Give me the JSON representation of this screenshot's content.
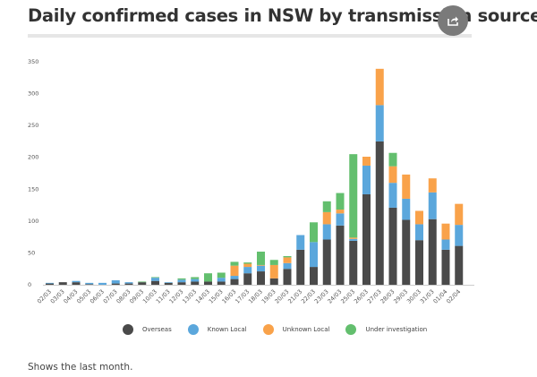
{
  "header": {
    "title": "Daily confirmed cases in NSW by transmission source",
    "share_icon": "share-icon"
  },
  "caption": "Shows the last month.",
  "chart_data": {
    "type": "bar",
    "stacked": true,
    "title": "Daily confirmed cases in NSW by transmission source",
    "xlabel": "",
    "ylabel": "",
    "ylim": [
      0,
      350
    ],
    "yticks": [
      0,
      50,
      100,
      150,
      200,
      250,
      300,
      350
    ],
    "grid": false,
    "legend_position": "bottom",
    "categories": [
      "02/03",
      "03/03",
      "04/03",
      "05/03",
      "06/03",
      "07/03",
      "08/03",
      "09/03",
      "10/03",
      "11/03",
      "12/03",
      "13/03",
      "14/03",
      "15/03",
      "16/03",
      "17/03",
      "18/03",
      "19/03",
      "20/03",
      "21/03",
      "22/03",
      "23/03",
      "24/03",
      "25/03",
      "26/03",
      "27/03",
      "28/03",
      "29/03",
      "30/03",
      "31/03",
      "01/04",
      "02/04"
    ],
    "series": [
      {
        "name": "Overseas",
        "color": "#4a4a4a",
        "values": [
          2,
          4,
          4,
          1,
          0,
          2,
          2,
          4,
          6,
          3,
          4,
          5,
          5,
          5,
          9,
          18,
          21,
          10,
          25,
          55,
          28,
          71,
          93,
          69,
          142,
          225,
          121,
          102,
          70,
          103,
          55,
          61
        ]
      },
      {
        "name": "Known Local",
        "color": "#5ba7dc",
        "values": [
          1,
          0,
          2,
          2,
          3,
          5,
          2,
          0,
          5,
          1,
          4,
          4,
          0,
          6,
          5,
          10,
          9,
          0,
          9,
          23,
          39,
          24,
          19,
          3,
          45,
          57,
          39,
          33,
          25,
          42,
          16,
          33
        ]
      },
      {
        "name": "Unknown Local",
        "color": "#f9a24a",
        "values": [
          0,
          0,
          0,
          0,
          0,
          0,
          0,
          0,
          0,
          0,
          0,
          0,
          0,
          0,
          16,
          5,
          1,
          21,
          9,
          0,
          0,
          19,
          6,
          2,
          14,
          57,
          26,
          38,
          21,
          22,
          25,
          33
        ]
      },
      {
        "name": "Under investigation",
        "color": "#63bf6e",
        "values": [
          0,
          0,
          0,
          0,
          0,
          0,
          0,
          1,
          1,
          0,
          2,
          3,
          13,
          8,
          6,
          2,
          21,
          8,
          2,
          0,
          31,
          17,
          26,
          131,
          0,
          0,
          21,
          0,
          0,
          0,
          0,
          0
        ]
      }
    ]
  }
}
